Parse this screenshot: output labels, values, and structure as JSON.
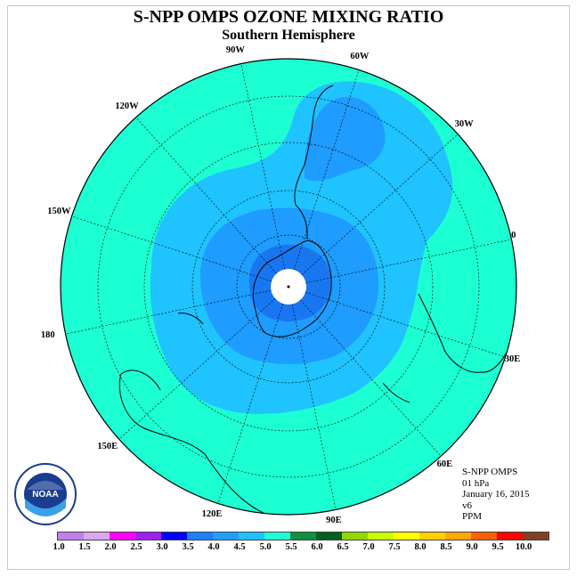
{
  "title": "S-NPP OMPS OZONE MIXING RATIO",
  "subtitle": "Southern Hemisphere",
  "logo": {
    "icon": "noaa-logo",
    "text": "NOAA",
    "ring_text": "NATIONAL OCEANIC AND ATMOSPHERIC ADMINISTRATION · U.S. DEPARTMENT OF COMMERCE"
  },
  "info": {
    "instrument": "S-NPP OMPS",
    "level": "01 hPa",
    "date": "January 16, 2015",
    "version": "v6",
    "units": "PPM"
  },
  "longitude_labels": [
    "90W",
    "60W",
    "30W",
    "0",
    "30E",
    "60E",
    "90E",
    "120E",
    "150E",
    "180",
    "150W",
    "120W"
  ],
  "legend": {
    "ticks": [
      "1.0",
      "1.5",
      "2.0",
      "2.5",
      "3.0",
      "3.5",
      "4.0",
      "4.5",
      "5.0",
      "5.5",
      "6.0",
      "6.5",
      "7.0",
      "7.5",
      "8.0",
      "8.5",
      "9.0",
      "9.5",
      "10.0"
    ],
    "colors": [
      "#c080e8",
      "#d8a8f0",
      "#ff00ff",
      "#a020f0",
      "#0000ff",
      "#1e7fff",
      "#1e9fff",
      "#20c0ff",
      "#20ffd8",
      "#109040",
      "#006020",
      "#90d800",
      "#c8ff00",
      "#ffff00",
      "#ffd000",
      "#ffa800",
      "#ff6000",
      "#ff0000",
      "#804020"
    ]
  },
  "colors": {
    "outer": "#1cffd2",
    "band_4_0": "#1fc3ff",
    "band_3_5": "#1e9cff",
    "band_3_0": "#1877f0",
    "pole_fill": "#ffffff"
  }
}
